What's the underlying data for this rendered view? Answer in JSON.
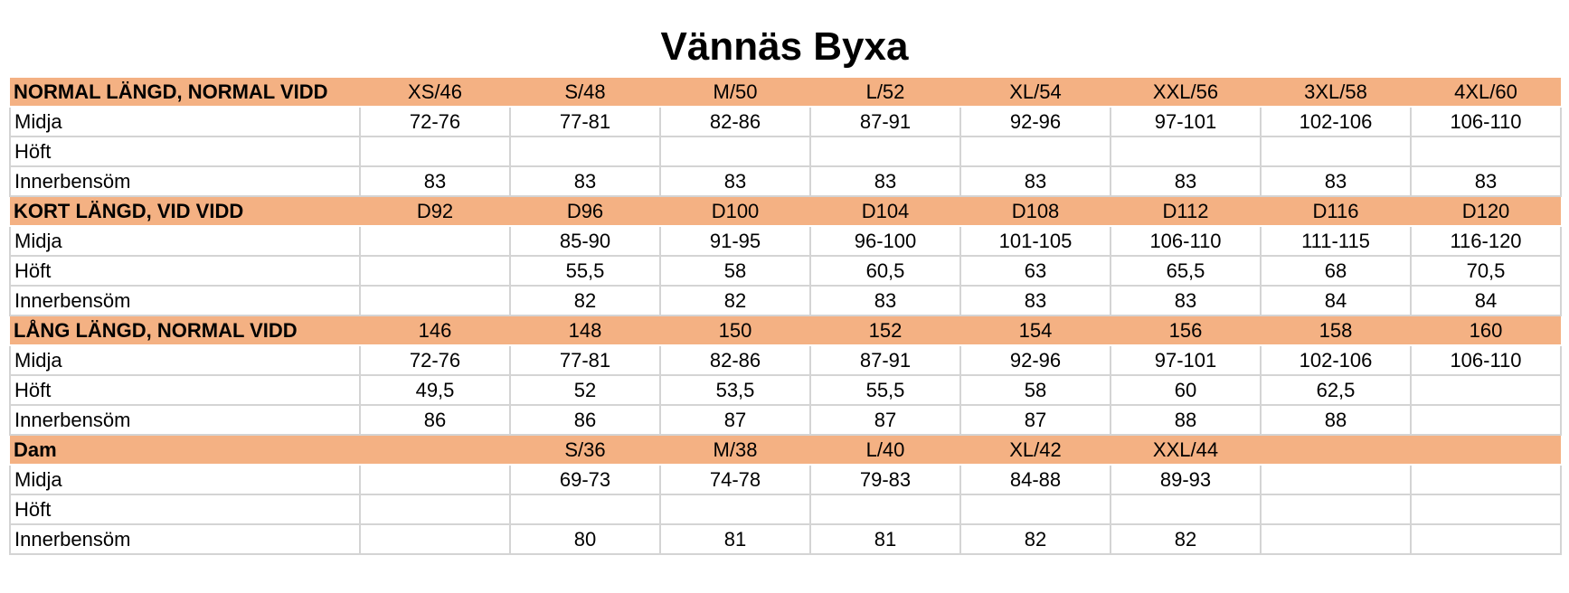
{
  "title": "Vännäs Byxa",
  "sections": [
    {
      "header": {
        "label": "NORMAL LÄNGD, NORMAL VIDD",
        "sizes": [
          "XS/46",
          "S/48",
          "M/50",
          "L/52",
          "XL/54",
          "XXL/56",
          "3XL/58",
          "4XL/60"
        ]
      },
      "rows": [
        {
          "label": "Midja",
          "values": [
            "72-76",
            "77-81",
            "82-86",
            "87-91",
            "92-96",
            "97-101",
            "102-106",
            "106-110"
          ]
        },
        {
          "label": "Höft",
          "values": [
            "",
            "",
            "",
            "",
            "",
            "",
            "",
            ""
          ]
        },
        {
          "label": "Innerbensöm",
          "values": [
            "83",
            "83",
            "83",
            "83",
            "83",
            "83",
            "83",
            "83"
          ]
        }
      ]
    },
    {
      "header": {
        "label": "KORT LÄNGD, VID VIDD",
        "sizes": [
          "D92",
          "D96",
          "D100",
          "D104",
          "D108",
          "D112",
          "D116",
          "D120"
        ]
      },
      "rows": [
        {
          "label": "Midja",
          "values": [
            "",
            "85-90",
            "91-95",
            "96-100",
            "101-105",
            "106-110",
            "111-115",
            "116-120"
          ]
        },
        {
          "label": "Höft",
          "values": [
            "",
            "55,5",
            "58",
            "60,5",
            "63",
            "65,5",
            "68",
            "70,5"
          ]
        },
        {
          "label": "Innerbensöm",
          "values": [
            "",
            "82",
            "82",
            "83",
            "83",
            "83",
            "84",
            "84"
          ]
        }
      ]
    },
    {
      "header": {
        "label": "LÅNG LÄNGD, NORMAL VIDD",
        "sizes": [
          "146",
          "148",
          "150",
          "152",
          "154",
          "156",
          "158",
          "160"
        ]
      },
      "rows": [
        {
          "label": "Midja",
          "values": [
            "72-76",
            "77-81",
            "82-86",
            "87-91",
            "92-96",
            "97-101",
            "102-106",
            "106-110"
          ]
        },
        {
          "label": "Höft",
          "values": [
            "49,5",
            "52",
            "53,5",
            "55,5",
            "58",
            "60",
            "62,5",
            ""
          ]
        },
        {
          "label": "Innerbensöm",
          "values": [
            "86",
            "86",
            "87",
            "87",
            "87",
            "88",
            "88",
            ""
          ]
        }
      ]
    },
    {
      "header": {
        "label": "Dam",
        "sizes": [
          "",
          "S/36",
          "M/38",
          "L/40",
          "XL/42",
          "XXL/44",
          "",
          ""
        ]
      },
      "rows": [
        {
          "label": "Midja",
          "values": [
            "",
            "69-73",
            "74-78",
            "79-83",
            "84-88",
            "89-93",
            "",
            ""
          ]
        },
        {
          "label": "Höft",
          "values": [
            "",
            "",
            "",
            "",
            "",
            "",
            "",
            ""
          ]
        },
        {
          "label": "Innerbensöm",
          "values": [
            "",
            "80",
            "81",
            "81",
            "82",
            "82",
            "",
            ""
          ]
        }
      ]
    }
  ],
  "colors": {
    "header_fill": "#f4b183",
    "grid_line": "#d4d4d4"
  }
}
